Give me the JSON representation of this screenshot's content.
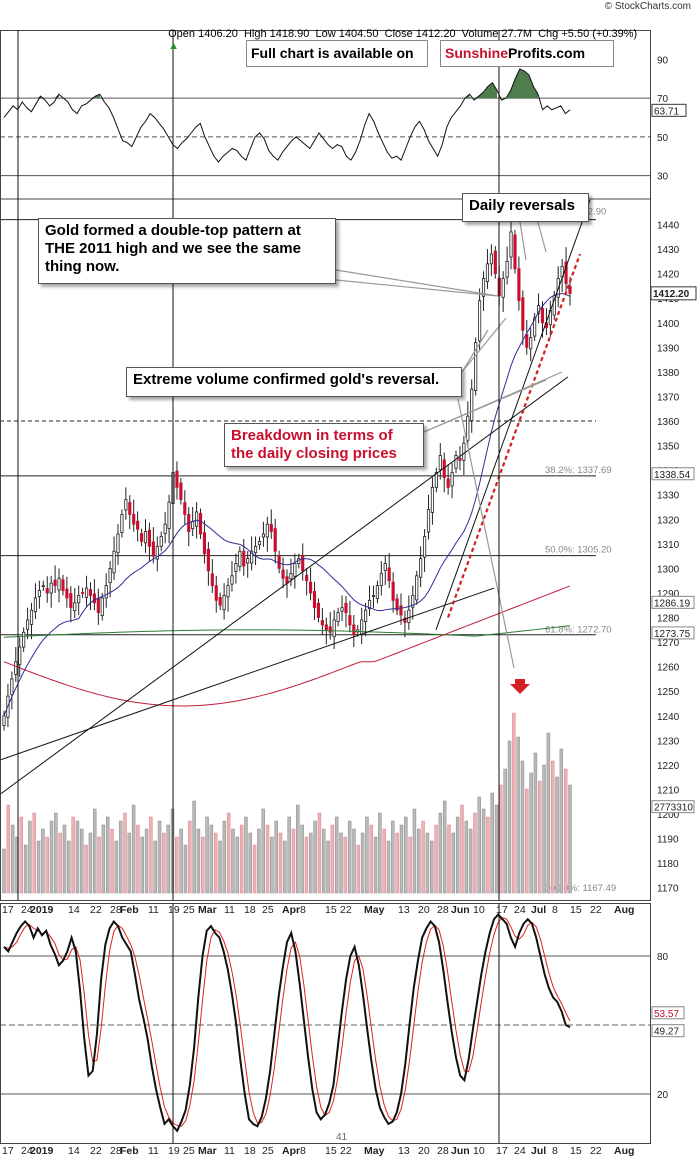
{
  "header": {
    "ohlc": "Open 1406.20  High 1418.90  Low 1404.50  Close 1412.20  Volume 27.7M  Chg +5.50 (+0.39%)",
    "change_arrow": "up-triangle-icon",
    "brand": "© StockCharts.com"
  },
  "notices": {
    "full_chart_label": "Full chart is available on",
    "sunshine": "Sunshine",
    "profits": "Profits.com"
  },
  "callouts": {
    "daily_reversals": "Daily reversals",
    "double_top": "Gold formed a double-top pattern at THE 2011 high and we see the same thing now.",
    "extreme_volume": "Extreme volume confirmed gold's reversal.",
    "breakdown": "Breakdown in terms of the daily closing prices"
  },
  "colors": {
    "up": "#ffffff",
    "down": "#c8102e",
    "candle_outline": "#222222",
    "rsi_fill": "#4e7d4e",
    "ma_blue": "#2d2d9a",
    "ma_green": "#2e7d2e",
    "ma_red": "#c0203a",
    "trend_red": "#d42020",
    "vol_up": "#b9b9b9",
    "vol_down": "#eeb0b6",
    "stoch_signal": "#e02020"
  },
  "chart_data": [
    {
      "type": "line",
      "panel": "RSI",
      "ylim": [
        20,
        100
      ],
      "y_ticks": [
        "90",
        "70",
        "50",
        "30"
      ],
      "levels": [
        70,
        50,
        30
      ],
      "last_value": "63.71",
      "values": [
        60,
        63,
        66,
        64,
        68,
        65,
        63,
        67,
        71,
        69,
        66,
        68,
        72,
        70,
        68,
        64,
        62,
        66,
        67,
        69,
        71,
        72,
        68,
        65,
        60,
        54,
        48,
        47,
        45,
        50,
        55,
        58,
        62,
        60,
        57,
        54,
        50,
        46,
        44,
        47,
        49,
        52,
        55,
        57,
        50,
        45,
        40,
        37,
        40,
        42,
        44,
        43,
        40,
        38,
        44,
        50,
        52,
        49,
        43,
        40,
        38,
        42,
        45,
        48,
        50,
        48,
        46,
        44,
        48,
        52,
        49,
        46,
        44,
        46,
        45,
        40,
        38,
        42,
        48,
        56,
        62,
        58,
        52,
        47,
        42,
        39,
        40,
        38,
        44,
        50,
        55,
        58,
        54,
        48,
        44,
        40,
        46,
        55,
        60,
        63,
        66,
        70,
        72,
        69,
        71,
        73,
        76,
        78,
        74,
        69,
        70,
        74,
        80,
        85,
        84,
        82,
        76,
        72,
        64,
        66,
        64,
        65,
        66,
        62,
        64
      ]
    },
    {
      "type": "candlestick",
      "panel": "Price",
      "title": "",
      "ylim": [
        1165,
        1450
      ],
      "y_ticks": [
        "1440",
        "1430",
        "1420",
        "1410",
        "1400",
        "1390",
        "1380",
        "1370",
        "1360",
        "1350",
        "1340",
        "1330",
        "1320",
        "1310",
        "1300",
        "1290",
        "1280",
        "1270",
        "1260",
        "1250",
        "1240",
        "1230",
        "1220",
        "1210",
        "1200",
        "1190",
        "1180",
        "1170"
      ],
      "last_price": "1412.20",
      "fib_levels": [
        {
          "label": "0.0%: 1442.90",
          "value": 1442.9
        },
        {
          "label": "38.2%: 1337.69",
          "value": 1337.69
        },
        {
          "label": "50.0%: 1305.20",
          "value": 1305.2
        },
        {
          "label": "61.8%: 1272.70",
          "value": 1272.7
        },
        {
          "label": "100.0%: 1167.49",
          "value": 1167.49
        }
      ],
      "price_tags": [
        {
          "label": "1338.54",
          "value": 1338.54
        },
        {
          "label": "1286.19",
          "value": 1286.19
        },
        {
          "label": "1273.75",
          "value": 1273.75
        },
        {
          "label": "2773310",
          "value": 1203
        }
      ],
      "horizontal_lines": [
        1442,
        1360,
        1337.7,
        1305.2,
        1273
      ],
      "closes": [
        1240,
        1248,
        1255,
        1262,
        1268,
        1274,
        1279,
        1283,
        1288,
        1291,
        1293,
        1290,
        1294,
        1293,
        1296,
        1291,
        1288,
        1284,
        1286,
        1289,
        1290,
        1292,
        1289,
        1286,
        1282,
        1288,
        1293,
        1300,
        1307,
        1314,
        1322,
        1328,
        1322,
        1318,
        1316,
        1311,
        1315,
        1309,
        1305,
        1309,
        1313,
        1318,
        1327,
        1339,
        1333,
        1328,
        1322,
        1315,
        1319,
        1323,
        1314,
        1306,
        1299,
        1293,
        1287,
        1285,
        1289,
        1293,
        1297,
        1302,
        1307,
        1301,
        1304,
        1307,
        1309,
        1311,
        1314,
        1318,
        1315,
        1307,
        1300,
        1296,
        1294,
        1298,
        1302,
        1304,
        1299,
        1295,
        1290,
        1284,
        1280,
        1277,
        1275,
        1274,
        1279,
        1282,
        1284,
        1282,
        1277,
        1273,
        1275,
        1279,
        1283,
        1287,
        1289,
        1293,
        1298,
        1302,
        1295,
        1287,
        1283,
        1281,
        1278,
        1283,
        1289,
        1297,
        1304,
        1313,
        1324,
        1333,
        1339,
        1346,
        1337,
        1333,
        1339,
        1346,
        1344,
        1351,
        1362,
        1373,
        1392,
        1409,
        1418,
        1424,
        1428,
        1420,
        1411,
        1418,
        1425,
        1437,
        1422,
        1409,
        1397,
        1390,
        1394,
        1402,
        1407,
        1400,
        1398,
        1405,
        1411,
        1418,
        1423,
        1416,
        1412
      ]
    },
    {
      "type": "bar",
      "panel": "Volume",
      "values": [
        11,
        22,
        17,
        14,
        19,
        12,
        18,
        20,
        13,
        16,
        14,
        18,
        20,
        15,
        17,
        13,
        19,
        18,
        16,
        12,
        15,
        21,
        14,
        17,
        19,
        16,
        13,
        18,
        20,
        15,
        22,
        17,
        14,
        16,
        19,
        13,
        18,
        15,
        17,
        21,
        14,
        16,
        12,
        18,
        23,
        16,
        14,
        19,
        17,
        15,
        13,
        18,
        20,
        16,
        14,
        17,
        19,
        15,
        12,
        16,
        21,
        17,
        14,
        18,
        15,
        13,
        19,
        16,
        22,
        17,
        14,
        15,
        18,
        20,
        16,
        13,
        17,
        19,
        15,
        14,
        18,
        16,
        12,
        15,
        19,
        17,
        14,
        20,
        16,
        13,
        18,
        15,
        17,
        19,
        14,
        21,
        16,
        18,
        15,
        13,
        17,
        20,
        23,
        17,
        15,
        19,
        22,
        18,
        16,
        20,
        24,
        21,
        19,
        25,
        22,
        27,
        31,
        38,
        45,
        39,
        33,
        26,
        30,
        35,
        28,
        32,
        40,
        33,
        29,
        36,
        31,
        27
      ]
    },
    {
      "type": "line",
      "panel": "Stochastic",
      "ylim": [
        0,
        100
      ],
      "y_ticks": [
        "80",
        "20"
      ],
      "last_values": [
        "53.57",
        "49.27"
      ],
      "bottom_label": "41",
      "k": [
        84,
        82,
        86,
        90,
        93,
        95,
        93,
        88,
        92,
        89,
        91,
        85,
        81,
        76,
        78,
        82,
        88,
        82,
        65,
        44,
        28,
        30,
        46,
        70,
        85,
        92,
        95,
        93,
        88,
        85,
        82,
        72,
        61,
        53,
        44,
        32,
        22,
        14,
        7,
        9,
        6,
        4,
        8,
        13,
        24,
        40,
        62,
        80,
        91,
        93,
        90,
        88,
        82,
        74,
        63,
        50,
        34,
        20,
        9,
        7,
        6,
        10,
        18,
        30,
        46,
        62,
        75,
        86,
        90,
        82,
        68,
        52,
        36,
        22,
        12,
        9,
        11,
        16,
        24,
        40,
        56,
        70,
        80,
        84,
        76,
        63,
        48,
        34,
        22,
        14,
        10,
        7,
        8,
        12,
        20,
        33,
        50,
        66,
        78,
        88,
        92,
        95,
        93,
        86,
        74,
        60,
        47,
        36,
        28,
        26,
        35,
        48,
        60,
        72,
        82,
        90,
        96,
        98,
        96,
        94,
        88,
        84,
        90,
        94,
        96,
        94,
        88,
        80,
        72,
        66,
        62,
        60,
        56,
        50,
        49
      ]
    },
    {
      "type": "axis",
      "x_labels": [
        "17",
        "24",
        "2019",
        "14",
        "22",
        "28",
        "Feb",
        "11",
        "19",
        "25",
        "Mar",
        "11",
        "18",
        "25",
        "Apr",
        "8",
        "15",
        "22",
        "May",
        "13",
        "20",
        "28",
        "Jun",
        "10",
        "17",
        "24",
        "Jul",
        "8",
        "15",
        "22",
        "Aug"
      ],
      "stoch_x_labels": [
        "17",
        "24",
        "2019",
        "14",
        "22",
        "28",
        "Feb",
        "11",
        "19",
        "25",
        "Mar",
        "11",
        "18",
        "25",
        "Apr",
        "8",
        "15",
        "22",
        "May",
        "13",
        "20",
        "28",
        "Jun",
        "10",
        "17",
        "24",
        "Jul",
        "8",
        "15",
        "22",
        "Aug"
      ]
    }
  ]
}
